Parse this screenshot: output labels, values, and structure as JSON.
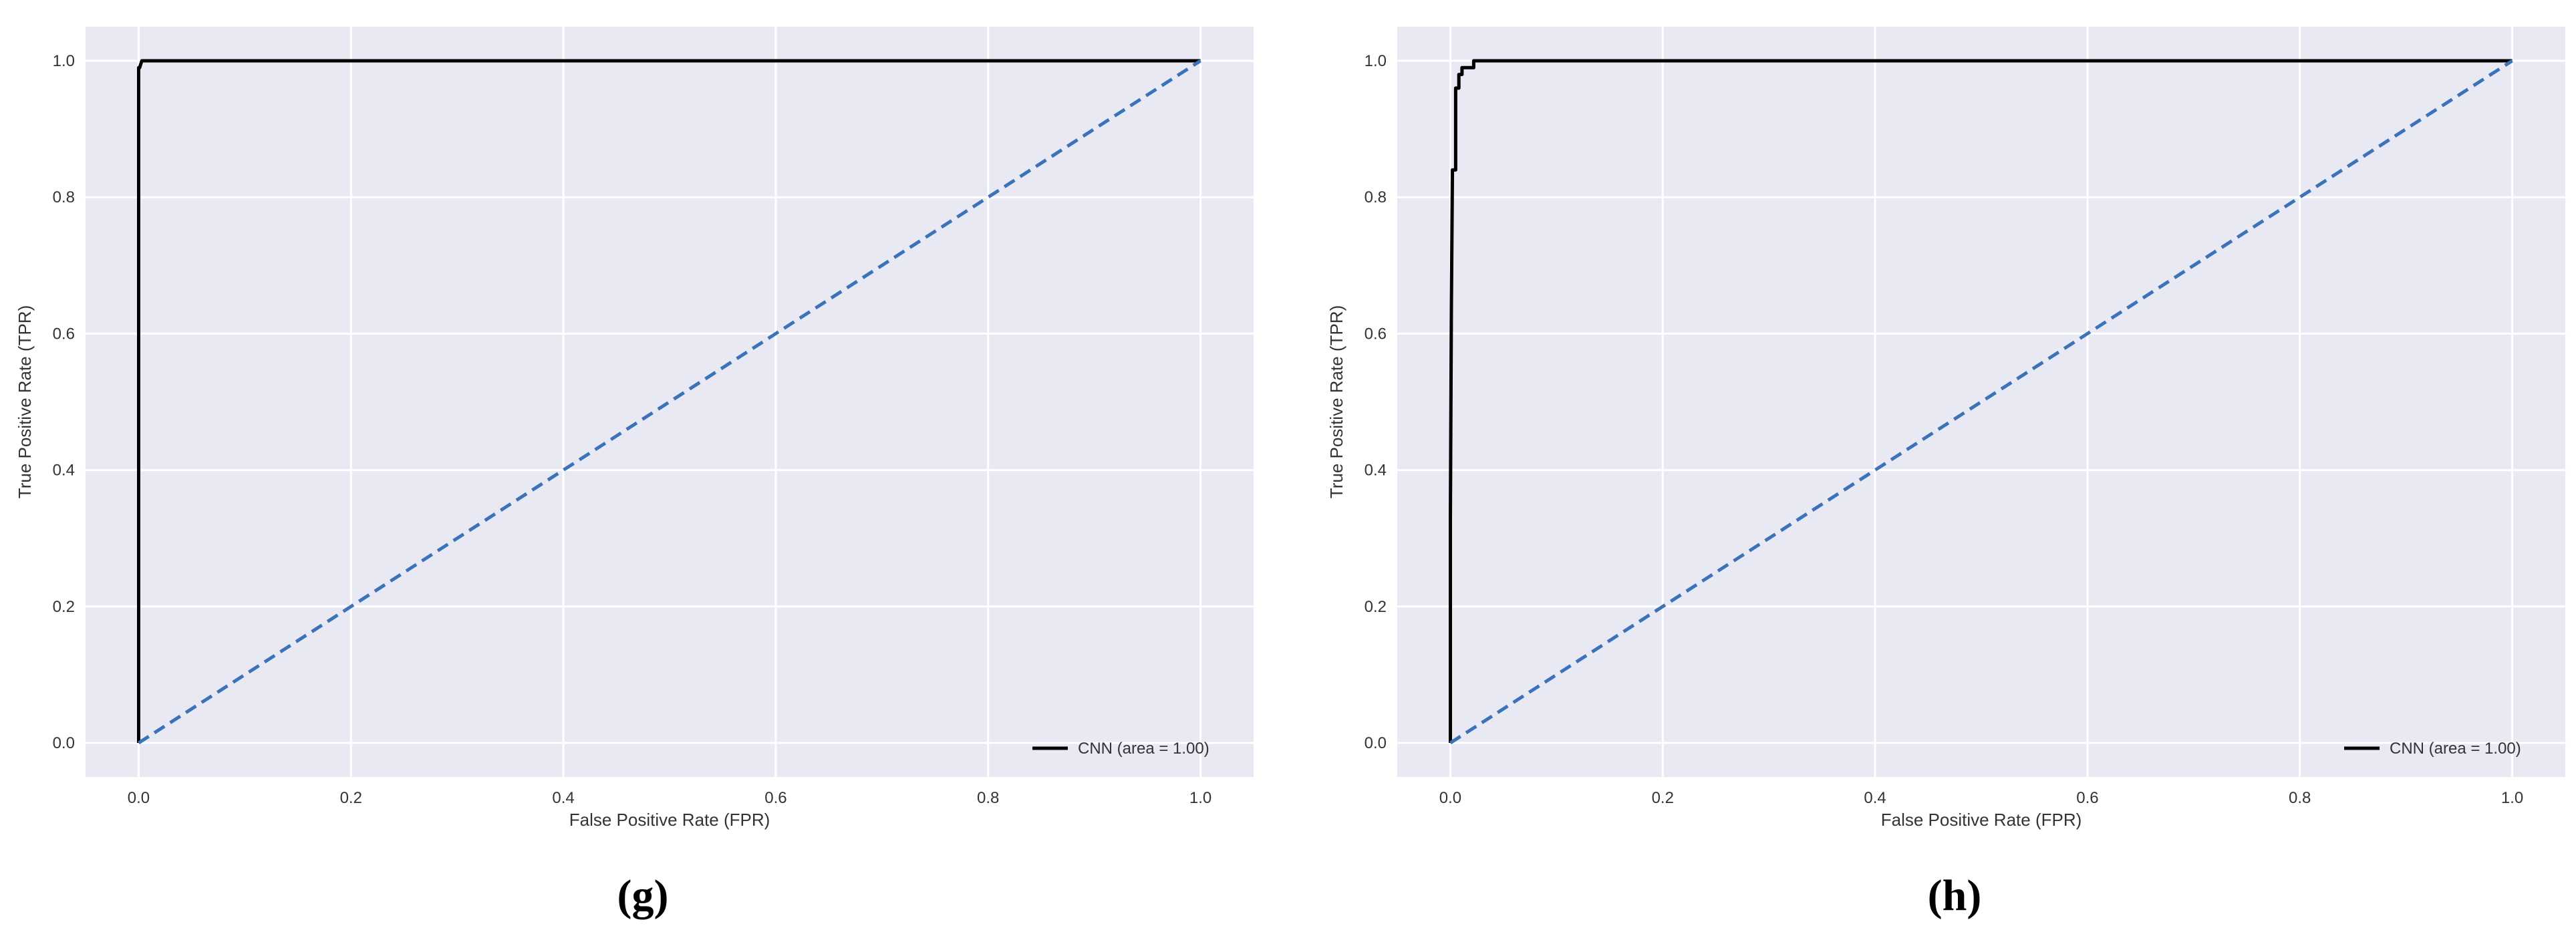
{
  "figure": {
    "colors": {
      "plot_background": "#e8e9f2",
      "grid": "#ffffff",
      "roc_line": "#000000",
      "chance_line": "#3a73b9"
    }
  },
  "chart_data": [
    {
      "type": "line",
      "caption": "(g)",
      "xlabel": "False Positive Rate (FPR)",
      "ylabel": "True Positive Rate (TPR)",
      "xlim": [
        -0.05,
        1.05
      ],
      "ylim": [
        -0.05,
        1.05
      ],
      "xticks": [
        0.0,
        0.2,
        0.4,
        0.6,
        0.8,
        1.0
      ],
      "xtick_labels": [
        "0.0",
        "0.2",
        "0.4",
        "0.6",
        "0.8",
        "1.0"
      ],
      "yticks": [
        0.0,
        0.2,
        0.4,
        0.6,
        0.8,
        1.0
      ],
      "ytick_labels": [
        "0.0",
        "0.2",
        "0.4",
        "0.6",
        "0.8",
        "1.0"
      ],
      "grid": true,
      "legend_position": "lower-right",
      "series": [
        {
          "name": "CNN (area = 1.00)",
          "style": "solid",
          "x": [
            0.0,
            0.0,
            0.001,
            0.003,
            0.005,
            1.0
          ],
          "y": [
            0.0,
            0.99,
            0.99,
            1.0,
            1.0,
            1.0
          ]
        },
        {
          "style": "dashed",
          "x": [
            0.0,
            1.0
          ],
          "y": [
            0.0,
            1.0
          ]
        }
      ]
    },
    {
      "type": "line",
      "caption": "(h)",
      "xlabel": "False Positive Rate (FPR)",
      "ylabel": "True Positive Rate (TPR)",
      "xlim": [
        -0.05,
        1.05
      ],
      "ylim": [
        -0.05,
        1.05
      ],
      "xticks": [
        0.0,
        0.2,
        0.4,
        0.6,
        0.8,
        1.0
      ],
      "xtick_labels": [
        "0.0",
        "0.2",
        "0.4",
        "0.6",
        "0.8",
        "1.0"
      ],
      "yticks": [
        0.0,
        0.2,
        0.4,
        0.6,
        0.8,
        1.0
      ],
      "ytick_labels": [
        "0.0",
        "0.2",
        "0.4",
        "0.6",
        "0.8",
        "1.0"
      ],
      "grid": true,
      "legend_position": "lower-right",
      "series": [
        {
          "name": "CNN (area = 1.00)",
          "style": "solid",
          "x": [
            0.0,
            0.0,
            0.001,
            0.002,
            0.002,
            0.005,
            0.005,
            0.008,
            0.008,
            0.011,
            0.011,
            0.015,
            0.015,
            0.022,
            0.022,
            1.0
          ],
          "y": [
            0.0,
            0.33,
            0.64,
            0.84,
            0.84,
            0.84,
            0.96,
            0.96,
            0.98,
            0.98,
            0.99,
            0.99,
            0.99,
            0.99,
            1.0,
            1.0
          ]
        },
        {
          "style": "dashed",
          "x": [
            0.0,
            1.0
          ],
          "y": [
            0.0,
            1.0
          ]
        }
      ]
    }
  ]
}
